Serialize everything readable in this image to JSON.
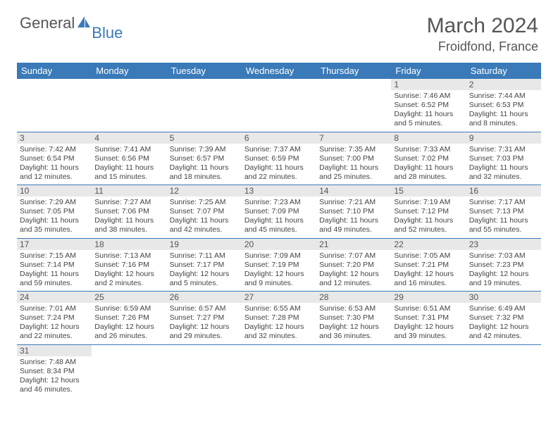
{
  "logo": {
    "text1": "General",
    "text2": "Blue",
    "icon_color": "#3a7ab8"
  },
  "title": "March 2024",
  "location": "Froidfond, France",
  "colors": {
    "header_bg": "#3a7ab8",
    "header_text": "#ffffff",
    "daynum_bg": "#e8e8e8",
    "text": "#555555",
    "border": "#3a7ab8"
  },
  "day_labels": [
    "Sunday",
    "Monday",
    "Tuesday",
    "Wednesday",
    "Thursday",
    "Friday",
    "Saturday"
  ],
  "weeks": [
    [
      null,
      null,
      null,
      null,
      null,
      {
        "n": "1",
        "sr": "Sunrise: 7:46 AM",
        "ss": "Sunset: 6:52 PM",
        "dl": "Daylight: 11 hours and 5 minutes."
      },
      {
        "n": "2",
        "sr": "Sunrise: 7:44 AM",
        "ss": "Sunset: 6:53 PM",
        "dl": "Daylight: 11 hours and 8 minutes."
      }
    ],
    [
      {
        "n": "3",
        "sr": "Sunrise: 7:42 AM",
        "ss": "Sunset: 6:54 PM",
        "dl": "Daylight: 11 hours and 12 minutes."
      },
      {
        "n": "4",
        "sr": "Sunrise: 7:41 AM",
        "ss": "Sunset: 6:56 PM",
        "dl": "Daylight: 11 hours and 15 minutes."
      },
      {
        "n": "5",
        "sr": "Sunrise: 7:39 AM",
        "ss": "Sunset: 6:57 PM",
        "dl": "Daylight: 11 hours and 18 minutes."
      },
      {
        "n": "6",
        "sr": "Sunrise: 7:37 AM",
        "ss": "Sunset: 6:59 PM",
        "dl": "Daylight: 11 hours and 22 minutes."
      },
      {
        "n": "7",
        "sr": "Sunrise: 7:35 AM",
        "ss": "Sunset: 7:00 PM",
        "dl": "Daylight: 11 hours and 25 minutes."
      },
      {
        "n": "8",
        "sr": "Sunrise: 7:33 AM",
        "ss": "Sunset: 7:02 PM",
        "dl": "Daylight: 11 hours and 28 minutes."
      },
      {
        "n": "9",
        "sr": "Sunrise: 7:31 AM",
        "ss": "Sunset: 7:03 PM",
        "dl": "Daylight: 11 hours and 32 minutes."
      }
    ],
    [
      {
        "n": "10",
        "sr": "Sunrise: 7:29 AM",
        "ss": "Sunset: 7:05 PM",
        "dl": "Daylight: 11 hours and 35 minutes."
      },
      {
        "n": "11",
        "sr": "Sunrise: 7:27 AM",
        "ss": "Sunset: 7:06 PM",
        "dl": "Daylight: 11 hours and 38 minutes."
      },
      {
        "n": "12",
        "sr": "Sunrise: 7:25 AM",
        "ss": "Sunset: 7:07 PM",
        "dl": "Daylight: 11 hours and 42 minutes."
      },
      {
        "n": "13",
        "sr": "Sunrise: 7:23 AM",
        "ss": "Sunset: 7:09 PM",
        "dl": "Daylight: 11 hours and 45 minutes."
      },
      {
        "n": "14",
        "sr": "Sunrise: 7:21 AM",
        "ss": "Sunset: 7:10 PM",
        "dl": "Daylight: 11 hours and 49 minutes."
      },
      {
        "n": "15",
        "sr": "Sunrise: 7:19 AM",
        "ss": "Sunset: 7:12 PM",
        "dl": "Daylight: 11 hours and 52 minutes."
      },
      {
        "n": "16",
        "sr": "Sunrise: 7:17 AM",
        "ss": "Sunset: 7:13 PM",
        "dl": "Daylight: 11 hours and 55 minutes."
      }
    ],
    [
      {
        "n": "17",
        "sr": "Sunrise: 7:15 AM",
        "ss": "Sunset: 7:14 PM",
        "dl": "Daylight: 11 hours and 59 minutes."
      },
      {
        "n": "18",
        "sr": "Sunrise: 7:13 AM",
        "ss": "Sunset: 7:16 PM",
        "dl": "Daylight: 12 hours and 2 minutes."
      },
      {
        "n": "19",
        "sr": "Sunrise: 7:11 AM",
        "ss": "Sunset: 7:17 PM",
        "dl": "Daylight: 12 hours and 5 minutes."
      },
      {
        "n": "20",
        "sr": "Sunrise: 7:09 AM",
        "ss": "Sunset: 7:19 PM",
        "dl": "Daylight: 12 hours and 9 minutes."
      },
      {
        "n": "21",
        "sr": "Sunrise: 7:07 AM",
        "ss": "Sunset: 7:20 PM",
        "dl": "Daylight: 12 hours and 12 minutes."
      },
      {
        "n": "22",
        "sr": "Sunrise: 7:05 AM",
        "ss": "Sunset: 7:21 PM",
        "dl": "Daylight: 12 hours and 16 minutes."
      },
      {
        "n": "23",
        "sr": "Sunrise: 7:03 AM",
        "ss": "Sunset: 7:23 PM",
        "dl": "Daylight: 12 hours and 19 minutes."
      }
    ],
    [
      {
        "n": "24",
        "sr": "Sunrise: 7:01 AM",
        "ss": "Sunset: 7:24 PM",
        "dl": "Daylight: 12 hours and 22 minutes."
      },
      {
        "n": "25",
        "sr": "Sunrise: 6:59 AM",
        "ss": "Sunset: 7:26 PM",
        "dl": "Daylight: 12 hours and 26 minutes."
      },
      {
        "n": "26",
        "sr": "Sunrise: 6:57 AM",
        "ss": "Sunset: 7:27 PM",
        "dl": "Daylight: 12 hours and 29 minutes."
      },
      {
        "n": "27",
        "sr": "Sunrise: 6:55 AM",
        "ss": "Sunset: 7:28 PM",
        "dl": "Daylight: 12 hours and 32 minutes."
      },
      {
        "n": "28",
        "sr": "Sunrise: 6:53 AM",
        "ss": "Sunset: 7:30 PM",
        "dl": "Daylight: 12 hours and 36 minutes."
      },
      {
        "n": "29",
        "sr": "Sunrise: 6:51 AM",
        "ss": "Sunset: 7:31 PM",
        "dl": "Daylight: 12 hours and 39 minutes."
      },
      {
        "n": "30",
        "sr": "Sunrise: 6:49 AM",
        "ss": "Sunset: 7:32 PM",
        "dl": "Daylight: 12 hours and 42 minutes."
      }
    ],
    [
      {
        "n": "31",
        "sr": "Sunrise: 7:48 AM",
        "ss": "Sunset: 8:34 PM",
        "dl": "Daylight: 12 hours and 46 minutes."
      },
      null,
      null,
      null,
      null,
      null,
      null
    ]
  ]
}
